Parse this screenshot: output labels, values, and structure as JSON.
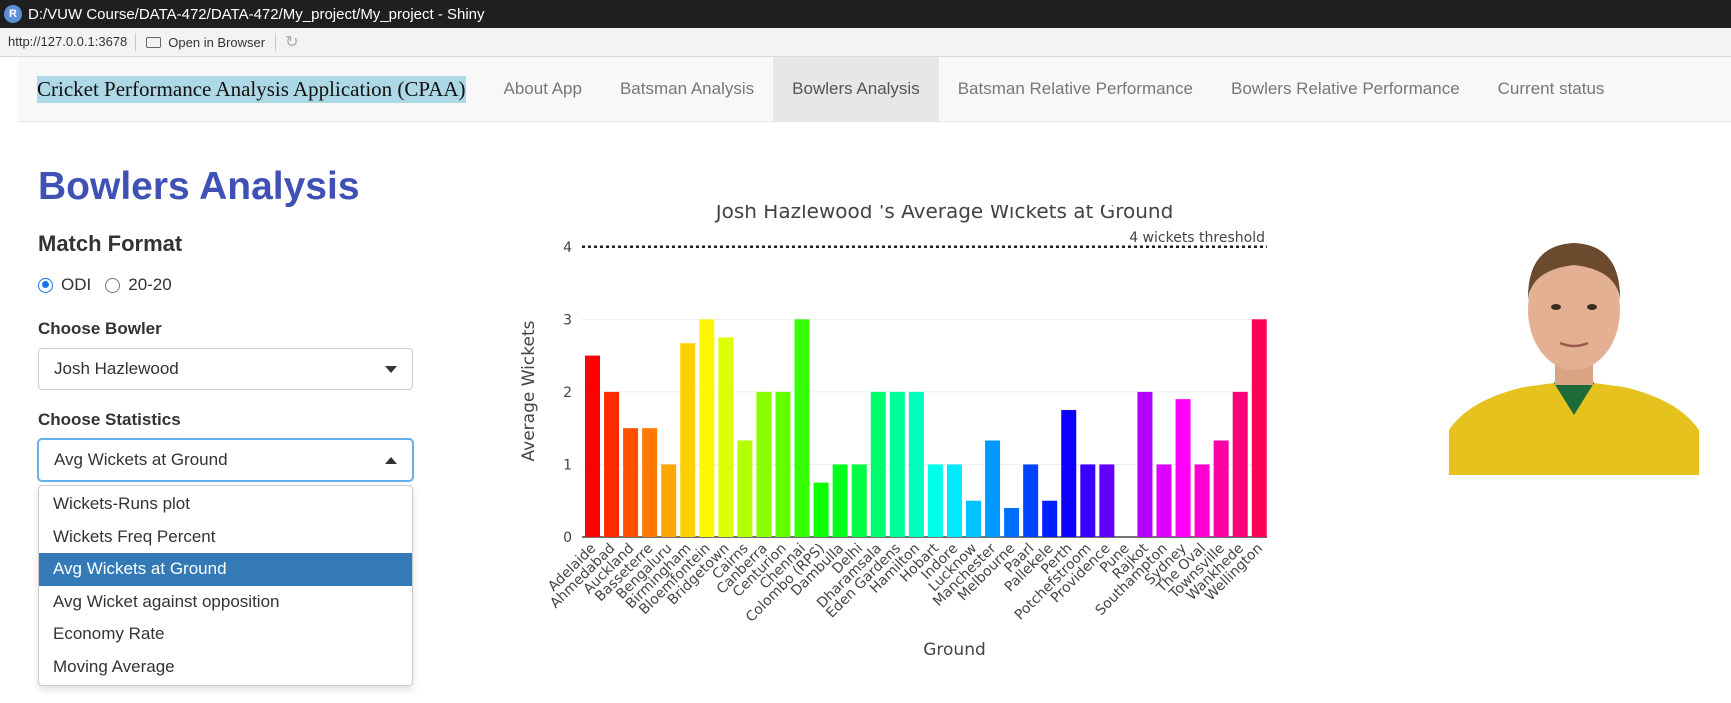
{
  "window": {
    "app_icon": "R",
    "title": "D:/VUW Course/DATA-472/DATA-472/My_project/My_project - Shiny"
  },
  "address_bar": {
    "url": "http://127.0.0.1:3678",
    "open_in_browser": "Open in Browser",
    "refresh_icon": "refresh-icon"
  },
  "navbar": {
    "brand": "Cricket Performance Analysis Application (CPAA)",
    "tabs": [
      {
        "label": "About App",
        "active": false
      },
      {
        "label": "Batsman Analysis",
        "active": false
      },
      {
        "label": "Bowlers Analysis",
        "active": true
      },
      {
        "label": "Batsman Relative Performance",
        "active": false
      },
      {
        "label": "Bowlers Relative Performance",
        "active": false
      },
      {
        "label": "Current status",
        "active": false
      }
    ]
  },
  "sidebar": {
    "page_title": "Bowlers Analysis",
    "match_format": {
      "heading": "Match Format",
      "options": [
        {
          "label": "ODI",
          "checked": true
        },
        {
          "label": "20-20",
          "checked": false
        }
      ]
    },
    "bowler": {
      "label": "Choose Bowler",
      "value": "Josh Hazlewood"
    },
    "statistics": {
      "label": "Choose Statistics",
      "value": "Avg Wickets at Ground",
      "options": [
        {
          "label": "Wickets-Runs plot",
          "selected": false
        },
        {
          "label": "Wickets Freq Percent",
          "selected": false
        },
        {
          "label": "Avg Wickets at Ground",
          "selected": true
        },
        {
          "label": "Avg Wicket against opposition",
          "selected": false
        },
        {
          "label": "Economy Rate",
          "selected": false
        },
        {
          "label": "Moving Average",
          "selected": false
        }
      ]
    }
  },
  "chart_data": {
    "type": "bar",
    "title": "Josh Hazlewood 's Average Wickets at Ground",
    "xlabel": "Ground",
    "ylabel": "Average Wickets",
    "ylim": [
      0,
      4.3
    ],
    "yticks": [
      0,
      1,
      2,
      3,
      4
    ],
    "grid": true,
    "threshold": {
      "value": 4,
      "label": "4 wickets threshold"
    },
    "categories": [
      "Adelaide",
      "Ahmedabad",
      "Auckland",
      "Basseterre",
      "Bengaluru",
      "Birmingham",
      "Bloemfontein",
      "Bridgetown",
      "Cairns",
      "Canberra",
      "Centurion",
      "Chennai",
      "Colombo (RPS)",
      "Dambulla",
      "Delhi",
      "Dharamsala",
      "Eden Gardens",
      "Hamilton",
      "Hobart",
      "Indore",
      "Lucknow",
      "Manchester",
      "Melbourne",
      "Paarl",
      "Pallekele",
      "Perth",
      "Potchefstroom",
      "Providence",
      "Pune",
      "Rajkot",
      "Southampton",
      "Sydney",
      "The Oval",
      "Townsville",
      "Wankhede",
      "Wellington"
    ],
    "values": [
      2.5,
      2,
      1.5,
      1.5,
      1,
      2.67,
      3,
      2.75,
      1.33,
      2,
      2,
      3,
      0.75,
      1,
      1,
      2,
      2,
      2,
      1,
      1,
      0.5,
      1.33,
      0.4,
      1,
      0.5,
      1.75,
      1,
      1,
      0,
      2,
      1,
      1.9,
      1,
      1.33,
      2,
      3
    ]
  },
  "photo": {
    "alt": "Player photo"
  }
}
